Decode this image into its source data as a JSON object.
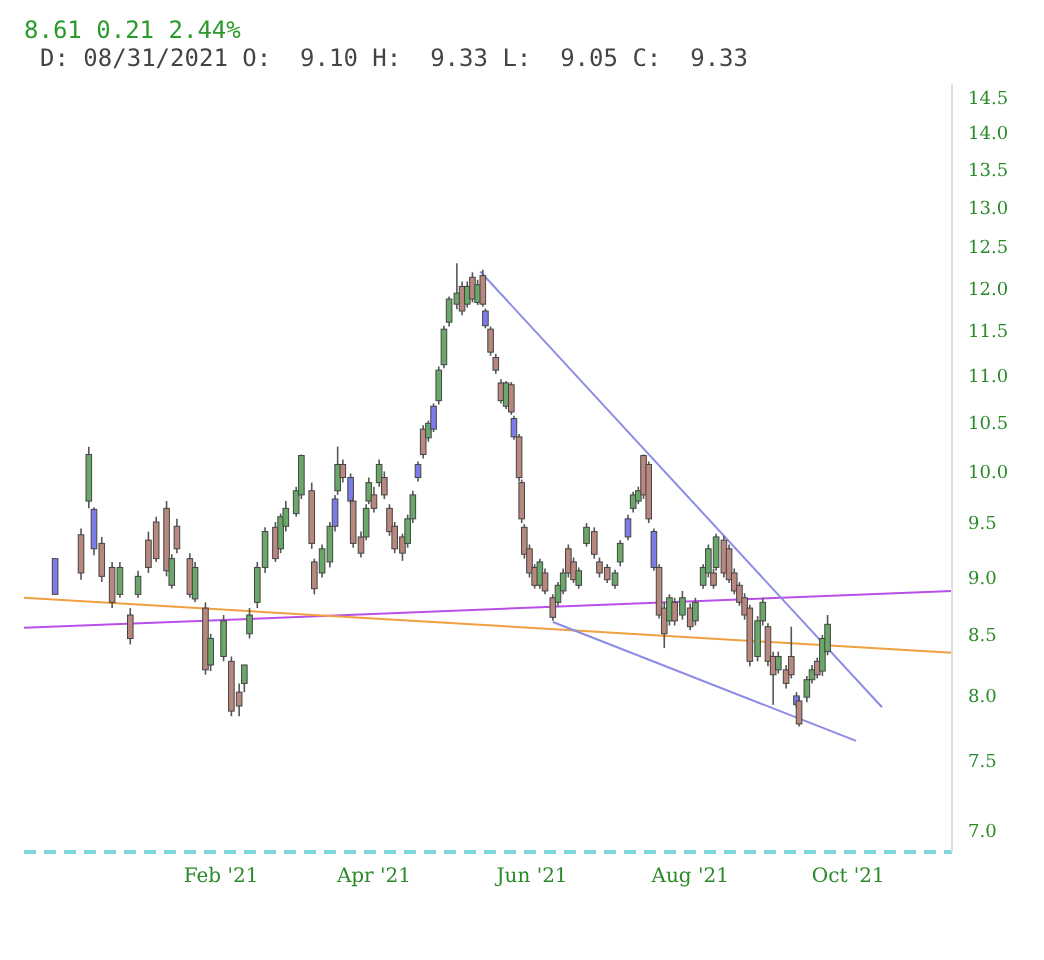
{
  "chart_data": {
    "type": "candlestick",
    "title": "8.61 0.21 2.44%",
    "subtitle": "D: 08/31/2021 O:  9.10 H:  9.33 L:  9.05 C:  9.33",
    "x": [
      "2020-11-29",
      "2020-12-09",
      "2020-12-12",
      "2020-12-14",
      "2020-12-17",
      "2020-12-21",
      "2020-12-24",
      "2020-12-28",
      "2020-12-31",
      "2021-01-04",
      "2021-01-07",
      "2021-01-11",
      "2021-01-13",
      "2021-01-15",
      "2021-01-20",
      "2021-01-22",
      "2021-01-26",
      "2021-01-28",
      "2021-02-02",
      "2021-02-05",
      "2021-02-08",
      "2021-02-10",
      "2021-02-12",
      "2021-02-15",
      "2021-02-18",
      "2021-02-22",
      "2021-02-24",
      "2021-02-26",
      "2021-03-02",
      "2021-03-04",
      "2021-03-08",
      "2021-03-09",
      "2021-03-12",
      "2021-03-15",
      "2021-03-17",
      "2021-03-18",
      "2021-03-20",
      "2021-03-23",
      "2021-03-24",
      "2021-03-27",
      "2021-03-29",
      "2021-03-30",
      "2021-04-01",
      "2021-04-03",
      "2021-04-05",
      "2021-04-07",
      "2021-04-09",
      "2021-04-12",
      "2021-04-14",
      "2021-04-16",
      "2021-04-18",
      "2021-04-20",
      "2021-04-22",
      "2021-04-24",
      "2021-04-26",
      "2021-04-28",
      "2021-04-30",
      "2021-05-03",
      "2021-05-05",
      "2021-05-07",
      "2021-05-09",
      "2021-05-11",
      "2021-05-13",
      "2021-05-14",
      "2021-05-16",
      "2021-05-18",
      "2021-05-20",
      "2021-05-22",
      "2021-05-24",
      "2021-05-25",
      "2021-05-27",
      "2021-05-28",
      "2021-05-29",
      "2021-05-31",
      "2021-06-02",
      "2021-06-04",
      "2021-06-06",
      "2021-06-09",
      "2021-06-11",
      "2021-06-13",
      "2021-06-15",
      "2021-06-17",
      "2021-06-19",
      "2021-06-22",
      "2021-06-25",
      "2021-06-27",
      "2021-06-30",
      "2021-07-03",
      "2021-07-05",
      "2021-07-08",
      "2021-07-10",
      "2021-07-12",
      "2021-07-14",
      "2021-07-16",
      "2021-07-18",
      "2021-07-20",
      "2021-07-22",
      "2021-07-24",
      "2021-07-26",
      "2021-07-29",
      "2021-08-01",
      "2021-08-03",
      "2021-08-06",
      "2021-08-08",
      "2021-08-10",
      "2021-08-11",
      "2021-08-14",
      "2021-08-16",
      "2021-08-18",
      "2021-08-20",
      "2021-08-22",
      "2021-08-24",
      "2021-08-27",
      "2021-08-29",
      "2021-08-31",
      "2021-09-02",
      "2021-09-04",
      "2021-09-07",
      "2021-09-09",
      "2021-09-11",
      "2021-09-12",
      "2021-09-15",
      "2021-09-17",
      "2021-09-19",
      "2021-09-21",
      "2021-09-23"
    ],
    "ohlc": [
      [
        9.17,
        9.17,
        8.85,
        8.85
      ],
      [
        9.39,
        9.45,
        8.98,
        9.04
      ],
      [
        9.71,
        10.25,
        9.64,
        10.17
      ],
      [
        9.63,
        9.65,
        9.2,
        9.26
      ],
      [
        9.31,
        9.37,
        8.96,
        9.01
      ],
      [
        9.09,
        9.14,
        8.73,
        8.78
      ],
      [
        8.85,
        9.14,
        8.82,
        9.09
      ],
      [
        8.67,
        8.73,
        8.42,
        8.47
      ],
      [
        8.85,
        9.06,
        8.82,
        9.01
      ],
      [
        9.34,
        9.42,
        9.04,
        9.09
      ],
      [
        9.51,
        9.56,
        9.14,
        9.17
      ],
      [
        9.64,
        9.71,
        9.01,
        9.06
      ],
      [
        8.93,
        9.21,
        8.9,
        9.17
      ],
      [
        9.47,
        9.54,
        9.22,
        9.26
      ],
      [
        9.17,
        9.22,
        8.82,
        8.85
      ],
      [
        8.81,
        9.14,
        8.78,
        9.09
      ],
      [
        8.73,
        8.78,
        8.17,
        8.21
      ],
      [
        8.25,
        8.51,
        8.2,
        8.47
      ],
      [
        8.32,
        8.67,
        8.28,
        8.62
      ],
      [
        8.28,
        8.32,
        7.84,
        7.88
      ],
      [
        8.03,
        8.1,
        7.84,
        7.92
      ],
      [
        8.1,
        8.25,
        8.03,
        8.25
      ],
      [
        8.51,
        8.73,
        8.47,
        8.67
      ],
      [
        8.78,
        9.14,
        8.73,
        9.09
      ],
      [
        9.09,
        9.46,
        9.04,
        9.42
      ],
      [
        9.46,
        9.51,
        9.14,
        9.17
      ],
      [
        9.26,
        9.59,
        9.22,
        9.56
      ],
      [
        9.47,
        9.71,
        9.42,
        9.64
      ],
      [
        9.59,
        9.85,
        9.56,
        9.81
      ],
      [
        9.77,
        10.17,
        9.73,
        10.16
      ],
      [
        9.81,
        9.89,
        9.26,
        9.31
      ],
      [
        9.14,
        9.17,
        8.85,
        8.9
      ],
      [
        9.04,
        9.3,
        9.0,
        9.26
      ],
      [
        9.14,
        9.51,
        9.09,
        9.47
      ],
      [
        9.73,
        9.77,
        9.42,
        9.47
      ],
      [
        9.81,
        10.25,
        9.77,
        10.07
      ],
      [
        10.07,
        10.12,
        9.89,
        9.94
      ],
      [
        9.94,
        9.98,
        9.68,
        9.71
      ],
      [
        9.71,
        9.75,
        9.27,
        9.31
      ],
      [
        9.37,
        9.42,
        9.18,
        9.22
      ],
      [
        9.37,
        9.68,
        9.34,
        9.64
      ],
      [
        9.71,
        9.94,
        9.68,
        9.89
      ],
      [
        9.77,
        9.85,
        9.6,
        9.64
      ],
      [
        9.89,
        10.12,
        9.85,
        10.07
      ],
      [
        9.94,
        10.0,
        9.73,
        9.77
      ],
      [
        9.64,
        9.68,
        9.38,
        9.42
      ],
      [
        9.47,
        9.51,
        9.22,
        9.26
      ],
      [
        9.37,
        9.4,
        9.15,
        9.22
      ],
      [
        9.31,
        9.58,
        9.27,
        9.54
      ],
      [
        9.54,
        9.81,
        9.5,
        9.77
      ],
      [
        10.07,
        10.1,
        9.9,
        9.94
      ],
      [
        10.43,
        10.47,
        10.13,
        10.17
      ],
      [
        10.34,
        10.52,
        10.3,
        10.49
      ],
      [
        10.67,
        10.7,
        10.4,
        10.43
      ],
      [
        10.73,
        11.1,
        10.69,
        11.06
      ],
      [
        11.12,
        11.56,
        11.08,
        11.52
      ],
      [
        11.6,
        11.9,
        11.55,
        11.87
      ],
      [
        11.81,
        12.3,
        11.75,
        11.94
      ],
      [
        12.02,
        12.08,
        11.68,
        11.73
      ],
      [
        11.81,
        12.08,
        11.77,
        12.02
      ],
      [
        12.13,
        12.19,
        11.83,
        11.87
      ],
      [
        11.83,
        12.1,
        11.8,
        12.04
      ],
      [
        12.15,
        12.22,
        11.78,
        11.81
      ],
      [
        11.73,
        11.76,
        11.53,
        11.56
      ],
      [
        11.52,
        11.55,
        11.22,
        11.26
      ],
      [
        11.2,
        11.24,
        11.02,
        11.06
      ],
      [
        10.92,
        10.96,
        10.7,
        10.73
      ],
      [
        10.67,
        10.94,
        10.64,
        10.92
      ],
      [
        10.9,
        10.93,
        10.58,
        10.61
      ],
      [
        10.54,
        10.57,
        10.32,
        10.35
      ],
      [
        10.35,
        10.38,
        9.9,
        9.94
      ],
      [
        9.89,
        9.92,
        9.5,
        9.54
      ],
      [
        9.46,
        9.49,
        9.17,
        9.21
      ],
      [
        9.26,
        9.3,
        9.0,
        9.04
      ],
      [
        9.09,
        9.12,
        8.9,
        8.93
      ],
      [
        8.93,
        9.17,
        8.9,
        9.14
      ],
      [
        9.04,
        9.08,
        8.85,
        8.88
      ],
      [
        8.82,
        8.85,
        8.62,
        8.65
      ],
      [
        8.78,
        8.96,
        8.75,
        8.93
      ],
      [
        8.88,
        9.08,
        8.85,
        9.04
      ],
      [
        9.26,
        9.3,
        9.0,
        9.04
      ],
      [
        9.14,
        9.18,
        8.95,
        8.98
      ],
      [
        8.93,
        9.09,
        8.9,
        9.06
      ],
      [
        9.31,
        9.5,
        9.28,
        9.46
      ],
      [
        9.42,
        9.46,
        9.17,
        9.21
      ],
      [
        9.14,
        9.18,
        9.0,
        9.04
      ],
      [
        9.09,
        9.12,
        8.95,
        8.98
      ],
      [
        8.93,
        9.07,
        8.9,
        9.04
      ],
      [
        9.14,
        9.34,
        9.1,
        9.31
      ],
      [
        9.54,
        9.58,
        9.34,
        9.37
      ],
      [
        9.64,
        9.8,
        9.6,
        9.77
      ],
      [
        9.71,
        9.85,
        9.68,
        9.81
      ],
      [
        10.16,
        10.17,
        9.73,
        9.77
      ],
      [
        10.07,
        10.1,
        9.5,
        9.54
      ],
      [
        9.42,
        9.45,
        9.06,
        9.09
      ],
      [
        9.09,
        9.12,
        8.64,
        8.67
      ],
      [
        8.73,
        8.78,
        8.39,
        8.51
      ],
      [
        8.62,
        8.85,
        8.58,
        8.82
      ],
      [
        8.78,
        8.82,
        8.58,
        8.62
      ],
      [
        8.67,
        8.88,
        8.63,
        8.82
      ],
      [
        8.73,
        8.77,
        8.54,
        8.57
      ],
      [
        8.62,
        8.82,
        8.58,
        8.78
      ],
      [
        8.93,
        9.12,
        8.9,
        9.09
      ],
      [
        9.04,
        9.3,
        9.0,
        9.26
      ],
      [
        9.04,
        9.08,
        8.9,
        8.93
      ],
      [
        9.09,
        9.4,
        9.06,
        9.37
      ],
      [
        9.34,
        9.38,
        9.0,
        9.04
      ],
      [
        9.26,
        9.3,
        8.95,
        8.98
      ],
      [
        9.04,
        9.08,
        8.85,
        8.88
      ],
      [
        8.93,
        8.96,
        8.75,
        8.78
      ],
      [
        8.82,
        8.86,
        8.63,
        8.67
      ],
      [
        8.73,
        8.76,
        8.24,
        8.28
      ],
      [
        8.32,
        8.66,
        8.28,
        8.62
      ],
      [
        8.62,
        8.82,
        8.58,
        8.78
      ],
      [
        8.57,
        8.6,
        8.24,
        8.28
      ],
      [
        8.32,
        8.36,
        7.93,
        8.17
      ],
      [
        8.21,
        8.36,
        8.18,
        8.32
      ],
      [
        8.21,
        8.25,
        8.06,
        8.1
      ],
      [
        8.32,
        8.57,
        8.14,
        8.17
      ],
      [
        8.0,
        8.03,
        7.9,
        7.93
      ],
      [
        7.96,
        7.99,
        7.76,
        7.78
      ],
      [
        7.99,
        8.16,
        7.95,
        8.13
      ],
      [
        8.13,
        8.25,
        8.1,
        8.21
      ],
      [
        8.28,
        8.31,
        8.14,
        8.17
      ],
      [
        8.2,
        8.5,
        8.16,
        8.47
      ],
      [
        8.36,
        8.67,
        8.33,
        8.59
      ]
    ],
    "colors": [
      "#7b7bea",
      "#b8877e",
      "#6aa86a",
      "#7b7bea",
      "#b8877e",
      "#b8877e",
      "#6aa86a",
      "#b8877e",
      "#6aa86a",
      "#b8877e",
      "#b8877e",
      "#b8877e",
      "#6aa86a",
      "#b8877e",
      "#b8877e",
      "#6aa86a",
      "#b8877e",
      "#6aa86a",
      "#6aa86a",
      "#b8877e",
      "#b8877e",
      "#6aa86a",
      "#6aa86a",
      "#6aa86a",
      "#6aa86a",
      "#b8877e",
      "#6aa86a",
      "#6aa86a",
      "#6aa86a",
      "#6aa86a",
      "#b8877e",
      "#b8877e",
      "#6aa86a",
      "#6aa86a",
      "#7b7bea",
      "#6aa86a",
      "#b8877e",
      "#7b7bea",
      "#b8877e",
      "#b8877e",
      "#6aa86a",
      "#6aa86a",
      "#b8877e",
      "#6aa86a",
      "#b8877e",
      "#b8877e",
      "#b8877e",
      "#b8877e",
      "#6aa86a",
      "#6aa86a",
      "#7b7bea",
      "#b8877e",
      "#6aa86a",
      "#7b7bea",
      "#6aa86a",
      "#6aa86a",
      "#6aa86a",
      "#6aa86a",
      "#b8877e",
      "#6aa86a",
      "#b8877e",
      "#6aa86a",
      "#b8877e",
      "#7b7bea",
      "#b8877e",
      "#b8877e",
      "#b8877e",
      "#6aa86a",
      "#b8877e",
      "#7b7bea",
      "#b8877e",
      "#b8877e",
      "#b8877e",
      "#b8877e",
      "#b8877e",
      "#6aa86a",
      "#b8877e",
      "#b8877e",
      "#6aa86a",
      "#6aa86a",
      "#b8877e",
      "#b8877e",
      "#6aa86a",
      "#6aa86a",
      "#b8877e",
      "#b8877e",
      "#b8877e",
      "#6aa86a",
      "#6aa86a",
      "#7b7bea",
      "#6aa86a",
      "#6aa86a",
      "#b8877e",
      "#b8877e",
      "#7b7bea",
      "#b8877e",
      "#b8877e",
      "#6aa86a",
      "#b8877e",
      "#6aa86a",
      "#b8877e",
      "#6aa86a",
      "#6aa86a",
      "#6aa86a",
      "#b8877e",
      "#6aa86a",
      "#b8877e",
      "#b8877e",
      "#b8877e",
      "#b8877e",
      "#b8877e",
      "#b8877e",
      "#6aa86a",
      "#6aa86a",
      "#b8877e",
      "#b8877e",
      "#6aa86a",
      "#b8877e",
      "#b8877e",
      "#7b7bea",
      "#b8877e",
      "#6aa86a",
      "#6aa86a",
      "#b8877e",
      "#6aa86a",
      "#6aa86a"
    ],
    "series": [
      {
        "type": "line",
        "color": "#b84fe8",
        "x": [
          "2020-11-17",
          "2021-11-10"
        ],
        "values": [
          8.56,
          8.88
        ]
      },
      {
        "type": "line",
        "color": "#f0a040",
        "x": [
          "2020-11-17",
          "2021-11-10"
        ],
        "values": [
          8.82,
          8.35
        ]
      },
      {
        "type": "line",
        "color": "#8c8ce6",
        "x": [
          "2021-05-12",
          "2021-10-14"
        ],
        "values": [
          12.2,
          7.91
        ]
      },
      {
        "type": "line",
        "color": "#8c8ce6",
        "x": [
          "2021-06-09",
          "2021-10-04"
        ],
        "values": [
          8.61,
          7.65
        ]
      }
    ],
    "log": "y",
    "legend": false,
    "xlim": [
      "2020-11-17",
      "2021-11-10"
    ],
    "xticks": [
      {
        "value": "2021-02-01",
        "label": "Feb '21"
      },
      {
        "value": "2021-04-01",
        "label": "Apr '21"
      },
      {
        "value": "2021-06-01",
        "label": "Jun '21"
      },
      {
        "value": "2021-08-01",
        "label": "Aug '21"
      },
      {
        "value": "2021-10-01",
        "label": "Oct '21"
      }
    ],
    "ylim": [
      6.85,
      14.7
    ],
    "yticks": [
      {
        "value": 7,
        "label": "7.0"
      },
      {
        "value": 7.5,
        "label": "7.5"
      },
      {
        "value": 8,
        "label": "8.0"
      },
      {
        "value": 8.5,
        "label": "8.5"
      },
      {
        "value": 9,
        "label": "9.0"
      },
      {
        "value": 9.5,
        "label": "9.5"
      },
      {
        "value": 10,
        "label": "10.0"
      },
      {
        "value": 10.5,
        "label": "10.5"
      },
      {
        "value": 11,
        "label": "11.0"
      },
      {
        "value": 11.5,
        "label": "11.5"
      },
      {
        "value": 12,
        "label": "12.0"
      },
      {
        "value": 12.5,
        "label": "12.5"
      },
      {
        "value": 13,
        "label": "13.0"
      },
      {
        "value": 13.5,
        "label": "13.5"
      },
      {
        "value": 14,
        "label": "14.0"
      },
      {
        "value": 14.5,
        "label": "14.5"
      }
    ]
  }
}
